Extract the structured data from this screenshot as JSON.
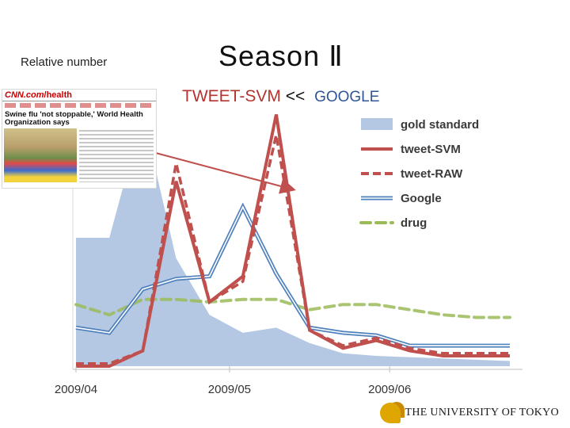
{
  "slide": {
    "ylabel": "Relative number",
    "title": "Season Ⅱ",
    "subtitle_left": "TWEET-SVM",
    "subtitle_sep": "<<",
    "subtitle_right": "GOOGLE",
    "university": "THE UNIVERSITY OF TOKYO"
  },
  "news": {
    "logo": "CNN.com",
    "section": "/health",
    "headline": "Swine flu 'not stoppable,' World Health Organization says"
  },
  "colors": {
    "gold": "#b4c8e4",
    "svm": "#c0504d",
    "raw": "#c0504d",
    "google": "#4f81bd",
    "drug": "#9bbb59",
    "arrow": "#c0504d"
  },
  "chart_data": {
    "type": "line",
    "x": [
      0,
      1,
      2,
      3,
      4,
      5,
      6,
      7,
      8,
      9,
      10,
      11,
      12,
      13
    ],
    "xticks": [
      {
        "pos": 0,
        "label": "2009/04"
      },
      {
        "pos": 4.6,
        "label": "2009/05"
      },
      {
        "pos": 9.4,
        "label": "2009/06"
      }
    ],
    "ylim": [
      0,
      1
    ],
    "legend_position": "top-right",
    "series": [
      {
        "name": "gold standard",
        "kind": "area",
        "values": [
          0.5,
          0.5,
          0.98,
          0.42,
          0.2,
          0.13,
          0.15,
          0.09,
          0.05,
          0.04,
          0.035,
          0.03,
          0.025,
          0.02
        ]
      },
      {
        "name": "tweet-SVM",
        "kind": "line",
        "values": [
          0.0,
          0.0,
          0.06,
          0.72,
          0.25,
          0.35,
          0.98,
          0.14,
          0.07,
          0.1,
          0.06,
          0.04,
          0.04,
          0.04
        ]
      },
      {
        "name": "tweet-RAW",
        "kind": "dash",
        "values": [
          0.01,
          0.01,
          0.06,
          0.79,
          0.25,
          0.33,
          0.9,
          0.14,
          0.08,
          0.11,
          0.07,
          0.05,
          0.05,
          0.05
        ]
      },
      {
        "name": "Google",
        "kind": "double",
        "values": [
          0.15,
          0.13,
          0.3,
          0.34,
          0.35,
          0.62,
          0.36,
          0.15,
          0.13,
          0.12,
          0.08,
          0.08,
          0.08,
          0.08
        ]
      },
      {
        "name": "drug",
        "kind": "drug",
        "values": [
          0.24,
          0.2,
          0.26,
          0.26,
          0.25,
          0.26,
          0.26,
          0.22,
          0.24,
          0.24,
          0.22,
          0.2,
          0.19,
          0.19
        ]
      }
    ]
  }
}
